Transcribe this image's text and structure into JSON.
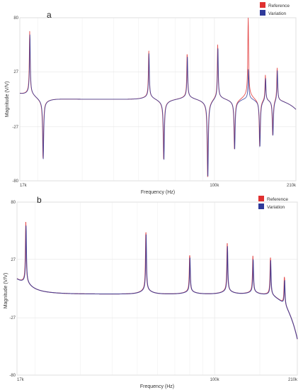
{
  "chart_data": [
    {
      "type": "line",
      "panel_label": "a",
      "xlabel": "Frequency (Hz)",
      "ylabel": "Magnitude (V/V)",
      "x_scale": "log",
      "xlim": [
        17000,
        210000
      ],
      "ylim": [
        -80,
        80
      ],
      "x_ticks": [
        {
          "value": 17000,
          "label": "17k"
        },
        {
          "value": 100000,
          "label": "100k"
        },
        {
          "value": 210000,
          "label": "210k"
        }
      ],
      "y_ticks": [
        {
          "value": 80,
          "label": "80"
        },
        {
          "value": 27,
          "label": "27"
        },
        {
          "value": -27,
          "label": "-27"
        },
        {
          "value": -80,
          "label": "-80"
        }
      ],
      "grid": true,
      "legend": "top-right",
      "features": {
        "start_level": 5,
        "baseline": 0,
        "resonances": [
          {
            "f": 18600,
            "peak": 58
          },
          {
            "f": 55000,
            "peak": 43
          },
          {
            "f": 78000,
            "peak": 41
          },
          {
            "f": 103000,
            "peak": 50
          },
          {
            "f": 136000,
            "peak": 30
          },
          {
            "f": 159000,
            "peak": 24
          },
          {
            "f": 177000,
            "peak": 31
          }
        ],
        "antiresonances": [
          {
            "f": 21000,
            "trough": -54
          },
          {
            "f": 63000,
            "trough": -54
          },
          {
            "f": 94000,
            "trough": -70
          },
          {
            "f": 120000,
            "trough": -45
          },
          {
            "f": 151000,
            "trough": -43
          },
          {
            "f": 170000,
            "trough": -33
          }
        ],
        "end_level": -10
      },
      "series": [
        {
          "name": "Reference",
          "color": "#e03030",
          "peak_override": {
            "136000": 75
          }
        },
        {
          "name": "Variation",
          "color": "#2f3a9a",
          "peak_override": {}
        }
      ]
    },
    {
      "type": "line",
      "panel_label": "b",
      "xlabel": "Frequency (Hz)",
      "ylabel": "Magnitude (V/V)",
      "x_scale": "log",
      "xlim": [
        17000,
        210000
      ],
      "ylim": [
        -80,
        80
      ],
      "x_ticks": [
        {
          "value": 17000,
          "label": "17k"
        },
        {
          "value": 100000,
          "label": "100k"
        },
        {
          "value": 210000,
          "label": "210k"
        }
      ],
      "y_ticks": [
        {
          "value": 80,
          "label": "80"
        },
        {
          "value": 27,
          "label": "27"
        },
        {
          "value": -27,
          "label": "-27"
        },
        {
          "value": -80,
          "label": "-80"
        }
      ],
      "grid": true,
      "legend": "top-right",
      "features": {
        "start_level": 8,
        "baseline": -5,
        "resonances": [
          {
            "f": 18400,
            "peak": 48
          },
          {
            "f": 54000,
            "peak": 47
          },
          {
            "f": 80000,
            "peak": 28
          },
          {
            "f": 112000,
            "peak": 37
          },
          {
            "f": 141000,
            "peak": 27
          },
          {
            "f": 165000,
            "peak": 28
          },
          {
            "f": 187000,
            "peak": 20
          }
        ],
        "antiresonances": [],
        "end_level": -47
      },
      "series": [
        {
          "name": "Reference",
          "color": "#e03030",
          "peak_override": {}
        },
        {
          "name": "Variation",
          "color": "#2f3a9a",
          "peak_override": {}
        }
      ]
    }
  ]
}
